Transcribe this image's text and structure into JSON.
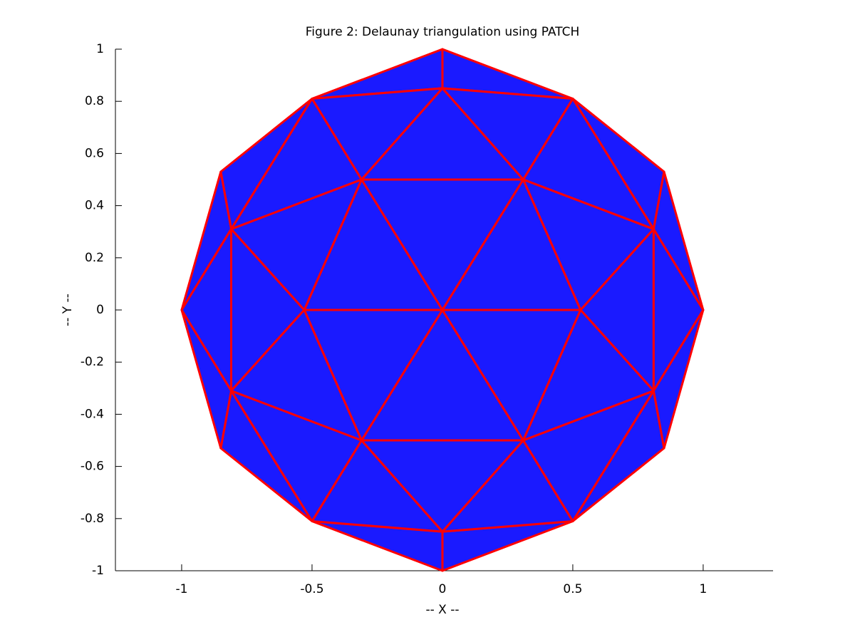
{
  "chart_data": {
    "type": "patch",
    "title": "Figure 2: Delaunay triangulation using PATCH",
    "xlabel": "-- X --",
    "ylabel": "-- Y --",
    "x": [
      0,
      1,
      0.85,
      0.5,
      0,
      -0.5,
      -0.85,
      -1,
      -0.85,
      -0.5,
      0,
      0.5,
      0.85,
      0,
      0.31,
      0.81,
      0.53,
      -0.31,
      -0.81,
      -0.53,
      0,
      0.31,
      0.81,
      -0.31,
      -0.81
    ],
    "y": [
      0,
      0,
      0.53,
      0.81,
      1,
      0.81,
      0.53,
      0,
      -0.53,
      -0.81,
      -1,
      -0.81,
      -0.53,
      0.85,
      0.5,
      0.31,
      0,
      0.5,
      0.31,
      0,
      -0.85,
      -0.5,
      -0.31,
      -0.5,
      -0.31
    ],
    "triangles": [
      [
        4,
        13,
        3
      ],
      [
        4,
        5,
        13
      ],
      [
        13,
        3,
        14
      ],
      [
        13,
        5,
        17
      ],
      [
        13,
        14,
        17
      ],
      [
        3,
        2,
        15
      ],
      [
        3,
        15,
        14
      ],
      [
        5,
        6,
        18
      ],
      [
        5,
        18,
        17
      ],
      [
        14,
        17,
        0
      ],
      [
        14,
        16,
        0
      ],
      [
        17,
        19,
        0
      ],
      [
        15,
        14,
        16
      ],
      [
        18,
        17,
        19
      ],
      [
        2,
        1,
        15
      ],
      [
        6,
        7,
        18
      ],
      [
        15,
        16,
        22
      ],
      [
        15,
        22,
        1
      ],
      [
        18,
        19,
        24
      ],
      [
        18,
        24,
        7
      ],
      [
        10,
        20,
        11
      ],
      [
        10,
        9,
        20
      ],
      [
        20,
        11,
        21
      ],
      [
        20,
        9,
        23
      ],
      [
        20,
        21,
        23
      ],
      [
        11,
        12,
        22
      ],
      [
        11,
        22,
        21
      ],
      [
        9,
        8,
        24
      ],
      [
        9,
        24,
        23
      ],
      [
        12,
        1,
        22
      ],
      [
        21,
        23,
        0
      ],
      [
        21,
        16,
        0
      ],
      [
        23,
        19,
        0
      ],
      [
        22,
        21,
        16
      ],
      [
        24,
        23,
        19
      ],
      [
        8,
        7,
        24
      ]
    ],
    "face_color": "#1a1aff",
    "edge_color": "#ff0000",
    "xlim": [
      -1.254,
      1.268
    ],
    "ylim": [
      -1,
      1
    ],
    "xticks": [
      -1,
      -0.5,
      0,
      0.5,
      1
    ],
    "yticks": [
      -1,
      -0.8,
      -0.6,
      -0.4,
      -0.2,
      0,
      0.2,
      0.4,
      0.6,
      0.8,
      1
    ]
  }
}
